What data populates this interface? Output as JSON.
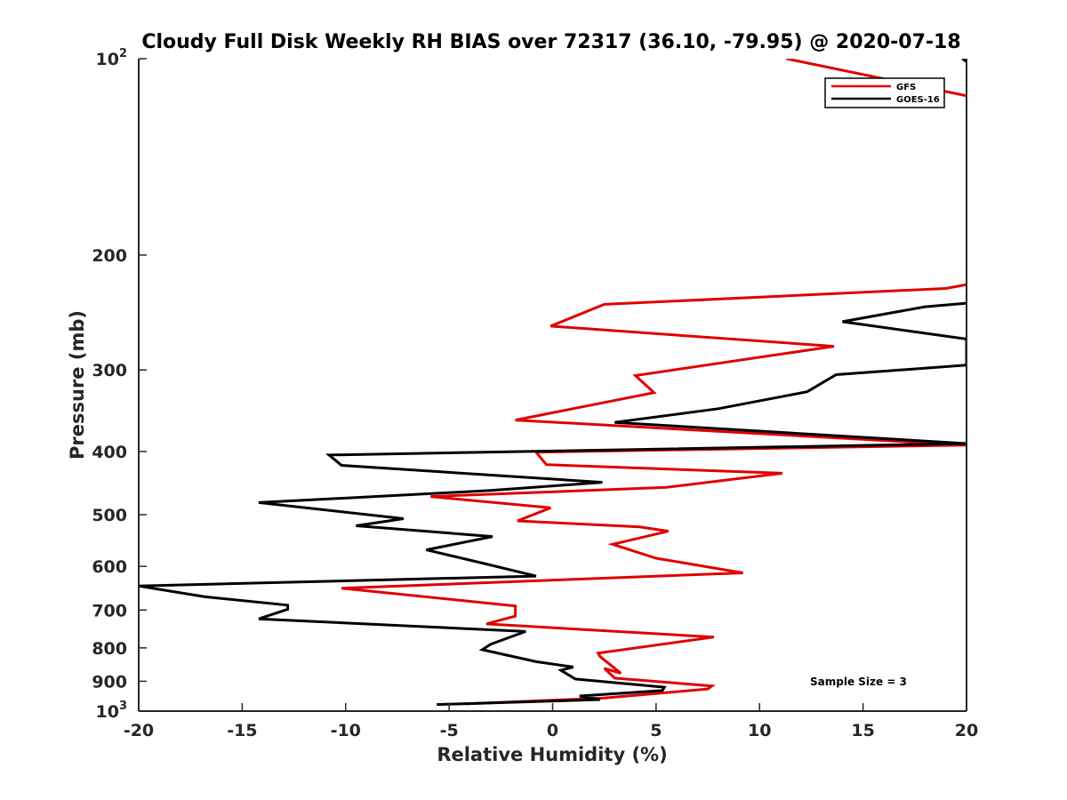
{
  "chart_data": {
    "type": "line",
    "title": "Cloudy Full Disk Weekly RH BIAS over 72317 (36.10, -79.95) @ 2020-07-18",
    "xlabel": "Relative Humidity (%)",
    "ylabel": "Pressure (mb)",
    "xlim": [
      -20,
      20
    ],
    "ylim": [
      100,
      1000
    ],
    "y_scale": "log",
    "y_reversed": true,
    "grid": false,
    "legend_position": "top-right",
    "x_ticks": [
      "-20",
      "-15",
      "-10",
      "-5",
      "0",
      "5",
      "10",
      "15",
      "20"
    ],
    "y_ticks": [
      {
        "value": 100,
        "base": "10",
        "exp": "2"
      },
      {
        "value": 200,
        "base": "200",
        "exp": ""
      },
      {
        "value": 300,
        "base": "300",
        "exp": ""
      },
      {
        "value": 400,
        "base": "400",
        "exp": ""
      },
      {
        "value": 500,
        "base": "500",
        "exp": ""
      },
      {
        "value": 600,
        "base": "600",
        "exp": ""
      },
      {
        "value": 700,
        "base": "700",
        "exp": ""
      },
      {
        "value": 800,
        "base": "800",
        "exp": ""
      },
      {
        "value": 900,
        "base": "900",
        "exp": ""
      },
      {
        "value": 1000,
        "base": "10",
        "exp": "3"
      }
    ],
    "series": [
      {
        "name": "GFS",
        "color": "#e00000",
        "points": [
          [
            -4.2,
            975
          ],
          [
            2.5,
            955
          ],
          [
            7.5,
            925
          ],
          [
            7.7,
            915
          ],
          [
            3.0,
            890
          ],
          [
            2.5,
            860
          ],
          [
            3.3,
            875
          ],
          [
            2.3,
            825
          ],
          [
            2.2,
            815
          ],
          [
            7.8,
            770
          ],
          [
            -3.2,
            735
          ],
          [
            -1.8,
            715
          ],
          [
            -1.8,
            690
          ],
          [
            -10.2,
            648
          ],
          [
            9.2,
            614
          ],
          [
            5.0,
            583
          ],
          [
            2.9,
            555
          ],
          [
            5.6,
            530
          ],
          [
            4.2,
            522
          ],
          [
            -1.7,
            511
          ],
          [
            -0.1,
            488
          ],
          [
            -5.9,
            469
          ],
          [
            5.5,
            454
          ],
          [
            11.1,
            432
          ],
          [
            -0.3,
            419
          ],
          [
            -0.8,
            401
          ],
          [
            20.0,
            391
          ],
          [
            -1.8,
            358
          ],
          [
            4.9,
            325
          ],
          [
            4.0,
            306
          ],
          [
            13.6,
            276
          ],
          [
            -0.1,
            257
          ],
          [
            2.5,
            238
          ],
          [
            19.0,
            225
          ],
          [
            20.0,
            222
          ]
        ],
        "upper_points": [
          [
            11.3,
            100
          ],
          [
            20.0,
            114
          ]
        ]
      },
      {
        "name": "GOES-16",
        "color": "#000000",
        "points": [
          [
            -5.6,
            977
          ],
          [
            2.3,
            960
          ],
          [
            1.3,
            948
          ],
          [
            5.3,
            930
          ],
          [
            5.4,
            919
          ],
          [
            1.1,
            893
          ],
          [
            0.4,
            866
          ],
          [
            1.0,
            856
          ],
          [
            -0.8,
            840
          ],
          [
            -3.4,
            805
          ],
          [
            -3.0,
            790
          ],
          [
            -1.3,
            755
          ],
          [
            -14.2,
            722
          ],
          [
            -12.8,
            698
          ],
          [
            -12.8,
            688
          ],
          [
            -16.8,
            668
          ],
          [
            -20.0,
            643
          ],
          [
            -0.8,
            621
          ],
          [
            -3.3,
            594
          ],
          [
            -6.1,
            566
          ],
          [
            -2.9,
            540
          ],
          [
            -9.5,
            520
          ],
          [
            -7.2,
            507
          ],
          [
            -14.2,
            479
          ],
          [
            -3.0,
            459
          ],
          [
            2.4,
            446
          ],
          [
            -10.2,
            420
          ],
          [
            -10.8,
            405
          ],
          [
            20.0,
            389
          ],
          [
            3.0,
            361
          ],
          [
            8.0,
            344
          ],
          [
            12.3,
            324
          ],
          [
            13.7,
            305
          ],
          [
            20.0,
            295
          ],
          [
            20.0,
            269
          ],
          [
            14.0,
            253
          ],
          [
            18.0,
            240
          ],
          [
            20.0,
            237
          ]
        ],
        "upper_points": [
          [
            19.8,
            100
          ],
          [
            20.0,
            101
          ]
        ]
      }
    ],
    "annotation": "Sample Size = 3"
  }
}
